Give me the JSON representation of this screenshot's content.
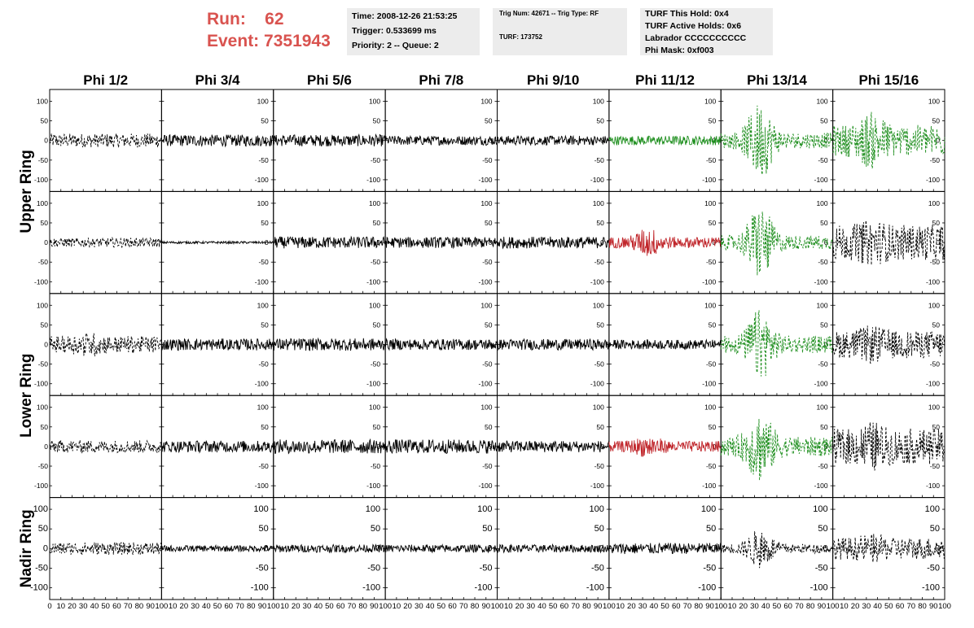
{
  "header": {
    "run_label": "Run:",
    "run_value": "62",
    "event_label": "Event:",
    "event_value": "7351943"
  },
  "info_time": {
    "time": "Time: 2008-12-26 21:53:25",
    "trigger": "Trigger: 0.533699 ms",
    "priority": "Priority: 2 -- Queue: 2"
  },
  "info_trig": {
    "trig": "Trig Num: 42671 -- Trig Type: RF",
    "turf": "TURF: 173752"
  },
  "info_turf": {
    "hold": "TURF This Hold: 0x4",
    "active": "TURF Active Holds: 0x6",
    "labrador": "Labrador CCCCCCCCCC",
    "mask": "Phi Mask: 0xf003"
  },
  "colors": {
    "header_red": "#d9534f",
    "trace_black": "#000000",
    "trace_green": "#1f8f1f",
    "trace_red": "#c0262b",
    "info_bg": "#ececec"
  },
  "chart_data": {
    "type": "line",
    "columns": [
      "Phi 1/2",
      "Phi 3/4",
      "Phi 5/6",
      "Phi 7/8",
      "Phi 9/10",
      "Phi 11/12",
      "Phi 13/14",
      "Phi 15/16"
    ],
    "ring_labels": [
      {
        "text": "Upper Ring",
        "rows": [
          0,
          1
        ]
      },
      {
        "text": "Lower Ring",
        "rows": [
          2,
          3
        ]
      },
      {
        "text": "Nadir Ring",
        "rows": [
          4,
          4
        ]
      }
    ],
    "xlim": [
      0,
      100
    ],
    "ylim": [
      -130,
      130
    ],
    "x_ticks": [
      0,
      10,
      20,
      30,
      40,
      50,
      60,
      70,
      80,
      90,
      100
    ],
    "x_tick_labels": [
      "0",
      "10",
      "20",
      "30",
      "40",
      "50",
      "60",
      "70",
      "80",
      "90",
      "100"
    ],
    "y_ticks": [
      -100,
      -50,
      0,
      50,
      100
    ],
    "y_tick_labels": [
      "-100",
      "-50",
      "0",
      "50",
      "100"
    ],
    "panels": [
      [
        {
          "color": "black",
          "dashed": true,
          "amp": 18,
          "burst": 0
        },
        {
          "color": "black",
          "dashed": false,
          "amp": 15,
          "burst": 0
        },
        {
          "color": "black",
          "dashed": false,
          "amp": 15,
          "burst": 0
        },
        {
          "color": "black",
          "dashed": false,
          "amp": 12,
          "burst": 0
        },
        {
          "color": "black",
          "dashed": false,
          "amp": 12,
          "burst": 0
        },
        {
          "color": "green",
          "dashed": false,
          "amp": 12,
          "burst": 0
        },
        {
          "color": "green",
          "dashed": true,
          "amp": 20,
          "burst": 80
        },
        {
          "color": "green",
          "dashed": true,
          "amp": 40,
          "burst": 35
        }
      ],
      [
        {
          "color": "black",
          "dashed": true,
          "amp": 12,
          "burst": 0
        },
        {
          "color": "black",
          "dashed": false,
          "amp": 3,
          "burst": 0
        },
        {
          "color": "black",
          "dashed": false,
          "amp": 15,
          "burst": 0
        },
        {
          "color": "black",
          "dashed": false,
          "amp": 14,
          "burst": 0
        },
        {
          "color": "black",
          "dashed": false,
          "amp": 15,
          "burst": 0
        },
        {
          "color": "red",
          "dashed": false,
          "amp": 14,
          "burst": 25
        },
        {
          "color": "green",
          "dashed": true,
          "amp": 18,
          "burst": 80
        },
        {
          "color": "black",
          "dashed": true,
          "amp": 45,
          "burst": 15
        }
      ],
      [
        {
          "color": "black",
          "dashed": true,
          "amp": 22,
          "burst": 10
        },
        {
          "color": "black",
          "dashed": false,
          "amp": 15,
          "burst": 0
        },
        {
          "color": "black",
          "dashed": false,
          "amp": 16,
          "burst": 0
        },
        {
          "color": "black",
          "dashed": false,
          "amp": 14,
          "burst": 0
        },
        {
          "color": "black",
          "dashed": false,
          "amp": 14,
          "burst": 0
        },
        {
          "color": "black",
          "dashed": false,
          "amp": 12,
          "burst": 0
        },
        {
          "color": "green",
          "dashed": true,
          "amp": 22,
          "burst": 70
        },
        {
          "color": "black",
          "dashed": true,
          "amp": 35,
          "burst": 15
        }
      ],
      [
        {
          "color": "black",
          "dashed": true,
          "amp": 16,
          "burst": 0
        },
        {
          "color": "black",
          "dashed": false,
          "amp": 15,
          "burst": 0
        },
        {
          "color": "black",
          "dashed": false,
          "amp": 18,
          "burst": 0
        },
        {
          "color": "black",
          "dashed": false,
          "amp": 18,
          "burst": 0
        },
        {
          "color": "black",
          "dashed": false,
          "amp": 15,
          "burst": 0
        },
        {
          "color": "red",
          "dashed": false,
          "amp": 14,
          "burst": 15
        },
        {
          "color": "green",
          "dashed": true,
          "amp": 25,
          "burst": 70
        },
        {
          "color": "black",
          "dashed": true,
          "amp": 45,
          "burst": 20
        }
      ],
      [
        {
          "color": "black",
          "dashed": true,
          "amp": 16,
          "burst": 0
        },
        {
          "color": "black",
          "dashed": false,
          "amp": 8,
          "burst": 0
        },
        {
          "color": "black",
          "dashed": false,
          "amp": 10,
          "burst": 0
        },
        {
          "color": "black",
          "dashed": false,
          "amp": 10,
          "burst": 0
        },
        {
          "color": "black",
          "dashed": false,
          "amp": 10,
          "burst": 0
        },
        {
          "color": "black",
          "dashed": false,
          "amp": 14,
          "burst": 0
        },
        {
          "color": "black",
          "dashed": true,
          "amp": 12,
          "burst": 40
        },
        {
          "color": "black",
          "dashed": true,
          "amp": 28,
          "burst": 10
        }
      ]
    ]
  }
}
